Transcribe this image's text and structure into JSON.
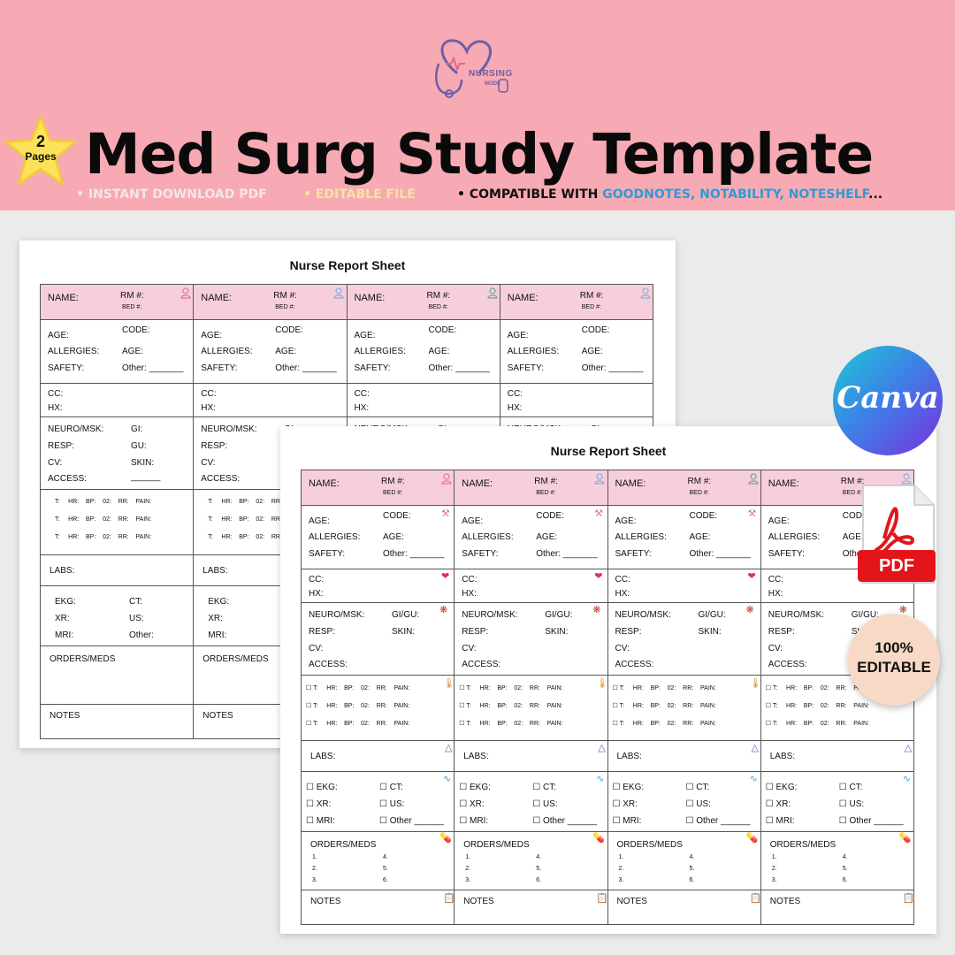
{
  "banner": {
    "logo_text": "NURSING",
    "logo_sub": "MODE",
    "star_number": "2",
    "star_label": "Pages",
    "title": "Med Surg Study Template",
    "feature_1": "• INSTANT DOWNLOAD PDF",
    "feature_2": "• EDITABLE FILE",
    "feature_3_prefix": "• COMPATIBLE WITH ",
    "feature_3_apps": "GOODNOTES, NOTABILITY, NOTESHELF",
    "feature_3_suffix": "...",
    "colors": {
      "background": "#f7aab3",
      "apps": "#2e9bd6"
    }
  },
  "sheet": {
    "title": "Nurse Report Sheet",
    "name": "NAME:",
    "rm": "RM #:",
    "bed": "BED #:",
    "age": "AGE:",
    "code": "CODE:",
    "allergies": "ALLERGIES:",
    "age2": "AGE:",
    "safety": "SAFETY:",
    "other": "Other: _______",
    "cc": "CC:",
    "hx": "HX:",
    "neuro": "NEURO/MSK:",
    "gi": "GI:",
    "gigu": "GI/GU:",
    "resp": "RESP:",
    "gu": "GU:",
    "cv": "CV:",
    "skin": "SKIN:",
    "access": "ACCESS:",
    "access_line": "______",
    "vitals_back": "T:     HR:    BP:    02:    RR:    PAIN:",
    "vitals_front": "☐ T:     HR:    BP:    02:    RR:    PAIN:",
    "labs": "LABS:",
    "ekg": "EKG:",
    "ct": "CT:",
    "xr": "XR:",
    "us": "US:",
    "mri": "MRI:",
    "other_plain": "Other:",
    "ekg_cb": "☐ EKG:",
    "ct_cb": "☐ CT:",
    "xr_cb": "☐ XR:",
    "us_cb": "☐ US:",
    "mri_cb": "☐ MRI:",
    "other_cb": "☐ Other ______",
    "orders": "ORDERS/MEDS",
    "n1": "1.",
    "n2": "2.",
    "n3": "3.",
    "n4": "4.",
    "n5": "5.",
    "n6": "6.",
    "notes": "NOTES",
    "colors": {
      "header_pink": "#f7cfdc"
    }
  },
  "badges": {
    "canva": "Canva",
    "pdf": "PDF",
    "editable_line1": "100%",
    "editable_line2": "EDITABLE"
  }
}
